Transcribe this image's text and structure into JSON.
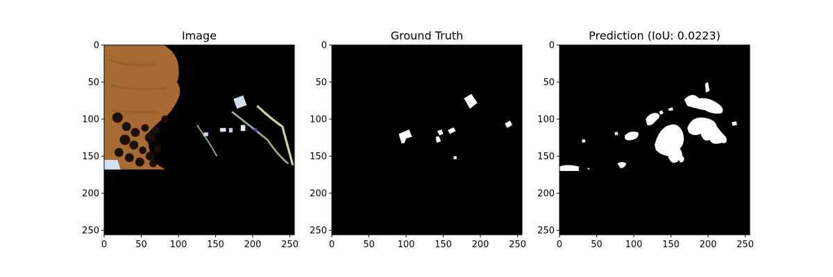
{
  "chart_data": [
    {
      "type": "image",
      "title": "Image",
      "xlim": [
        0,
        256
      ],
      "ylim": [
        256,
        0
      ],
      "xticks": [
        0,
        50,
        100,
        150,
        200,
        250
      ],
      "yticks": [
        0,
        50,
        100,
        150,
        200,
        250
      ],
      "colors": {
        "background": "#000000",
        "field": "#a86a32",
        "field_dark": "#8a5526",
        "shadow": "#1b1008",
        "road": "#c9d6a8",
        "roof": "#cfe0f0",
        "roof_blue": "#3548c8"
      }
    },
    {
      "type": "image",
      "title": "Ground Truth",
      "xlim": [
        0,
        256
      ],
      "ylim": [
        256,
        0
      ],
      "xticks": [
        0,
        50,
        100,
        150,
        200,
        250
      ],
      "yticks": [
        0,
        50,
        100,
        150,
        200,
        250
      ],
      "colors": {
        "background": "#000000",
        "mask": "#ffffff"
      }
    },
    {
      "type": "image",
      "title": "Prediction (IoU: 0.0223)",
      "xlim": [
        0,
        256
      ],
      "ylim": [
        256,
        0
      ],
      "xticks": [
        0,
        50,
        100,
        150,
        200,
        250
      ],
      "yticks": [
        0,
        50,
        100,
        150,
        200,
        250
      ],
      "colors": {
        "background": "#000000",
        "mask": "#ffffff"
      }
    }
  ]
}
